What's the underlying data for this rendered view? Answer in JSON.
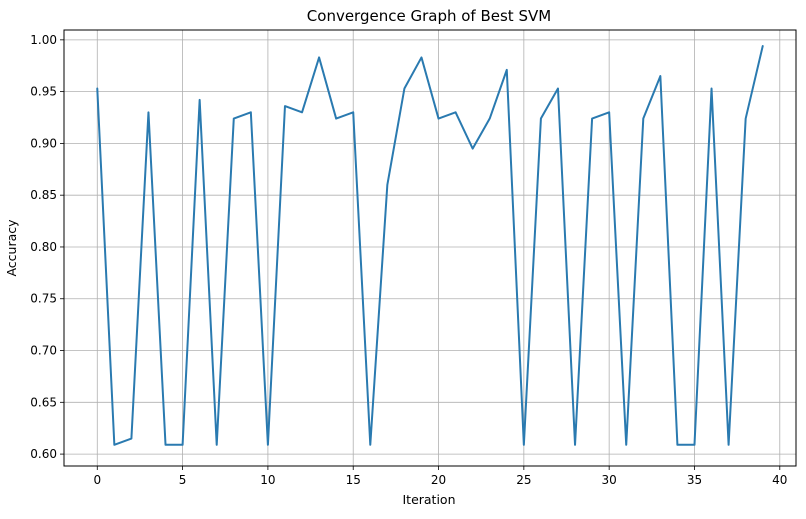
{
  "chart_data": {
    "type": "line",
    "title": "Convergence Graph of Best SVM",
    "xlabel": "Iteration",
    "ylabel": "Accuracy",
    "xlim": [
      -1.95,
      40.95
    ],
    "ylim": [
      0.5885,
      1.0095
    ],
    "xticks": [
      0,
      5,
      10,
      15,
      20,
      25,
      30,
      35,
      40
    ],
    "xtick_labels": [
      "0",
      "5",
      "10",
      "15",
      "20",
      "25",
      "30",
      "35",
      "40"
    ],
    "yticks": [
      0.6,
      0.65,
      0.7,
      0.75,
      0.8,
      0.85,
      0.9,
      0.95,
      1.0
    ],
    "ytick_labels": [
      "0.60",
      "0.65",
      "0.70",
      "0.75",
      "0.80",
      "0.85",
      "0.90",
      "0.95",
      "1.00"
    ],
    "grid": true,
    "line_color": "#2a7ab0",
    "grid_color": "#b0b0b0",
    "x": [
      0,
      1,
      2,
      3,
      4,
      5,
      6,
      7,
      8,
      9,
      10,
      11,
      12,
      13,
      14,
      15,
      16,
      17,
      18,
      19,
      20,
      21,
      22,
      23,
      24,
      25,
      26,
      27,
      28,
      29,
      30,
      31,
      32,
      33,
      34,
      35,
      36,
      37,
      38,
      39
    ],
    "series": [
      {
        "values": [
          0.953,
          0.609,
          0.615,
          0.93,
          0.609,
          0.609,
          0.942,
          0.609,
          0.924,
          0.93,
          0.609,
          0.936,
          0.93,
          0.983,
          0.924,
          0.93,
          0.609,
          0.86,
          0.953,
          0.983,
          0.924,
          0.93,
          0.895,
          0.924,
          0.971,
          0.609,
          0.924,
          0.953,
          0.609,
          0.924,
          0.93,
          0.609,
          0.924,
          0.965,
          0.609,
          0.609,
          0.953,
          0.609,
          0.924,
          0.994
        ]
      }
    ]
  }
}
